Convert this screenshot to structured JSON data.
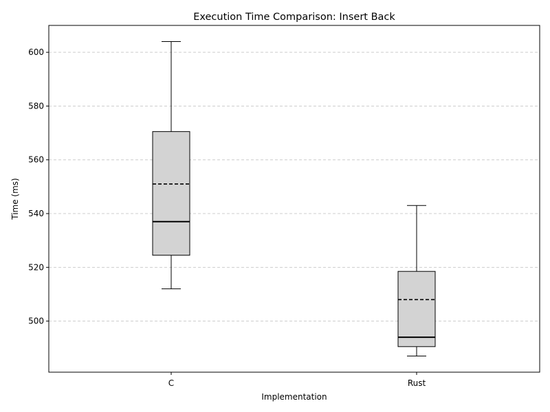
{
  "chart_data": {
    "type": "box",
    "title": "Execution Time Comparison: Insert Back",
    "xlabel": "Implementation",
    "ylabel": "Time (ms)",
    "ylim": [
      481,
      610
    ],
    "yticks": [
      500,
      520,
      540,
      560,
      580,
      600
    ],
    "grid": "y-dashed",
    "categories": [
      "C",
      "Rust"
    ],
    "boxes": [
      {
        "name": "C",
        "whisker_low": 512,
        "q1": 524.5,
        "median": 537,
        "mean": 551,
        "q3": 570.5,
        "whisker_high": 604
      },
      {
        "name": "Rust",
        "whisker_low": 487,
        "q1": 490.5,
        "median": 494,
        "mean": 508,
        "q3": 518.5,
        "whisker_high": 543
      }
    ],
    "colors": {
      "box_fill": "#d3d3d3",
      "line": "#000000",
      "grid": "#cccccc"
    }
  }
}
